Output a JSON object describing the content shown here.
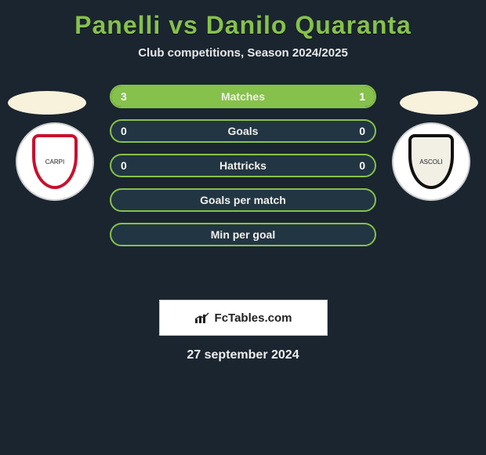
{
  "title": "Panelli vs Danilo Quaranta",
  "subtitle": "Club competitions, Season 2024/2025",
  "date": "27 september 2024",
  "brand": "FcTables.com",
  "colors": {
    "bg": "#1a252f",
    "accent": "#86c14b",
    "bar_bg": "#223543",
    "text": "#ffffff",
    "pod": "#f8f1dc",
    "brand_box": "#ffffff"
  },
  "left_team": {
    "name": "Carpi FC 1909",
    "crest_bg": "#ffffff",
    "crest_border": "#c8102e",
    "crest_text": "CARPI"
  },
  "right_team": {
    "name": "Ascoli Picchio FC",
    "crest_bg": "#f2efe5",
    "crest_border": "#111111",
    "crest_text": "ASCOLI"
  },
  "stats": [
    {
      "label": "Matches",
      "left_value": "3",
      "right_value": "1",
      "left_pct": 75,
      "right_pct": 25,
      "show_left": true,
      "show_right": true
    },
    {
      "label": "Goals",
      "left_value": "0",
      "right_value": "0",
      "left_pct": 0,
      "right_pct": 0,
      "show_left": true,
      "show_right": true
    },
    {
      "label": "Hattricks",
      "left_value": "0",
      "right_value": "0",
      "left_pct": 0,
      "right_pct": 0,
      "show_left": true,
      "show_right": true
    },
    {
      "label": "Goals per match",
      "left_value": "",
      "right_value": "",
      "left_pct": 0,
      "right_pct": 0,
      "show_left": false,
      "show_right": false
    },
    {
      "label": "Min per goal",
      "left_value": "",
      "right_value": "",
      "left_pct": 0,
      "right_pct": 0,
      "show_left": false,
      "show_right": false
    }
  ]
}
